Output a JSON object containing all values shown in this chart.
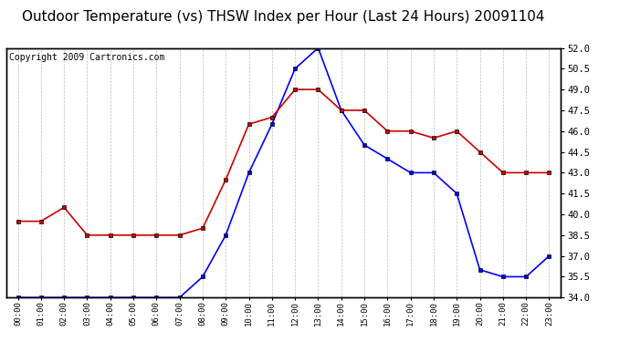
{
  "title": "Outdoor Temperature (vs) THSW Index per Hour (Last 24 Hours) 20091104",
  "copyright": "Copyright 2009 Cartronics.com",
  "hours": [
    "00:00",
    "01:00",
    "02:00",
    "03:00",
    "04:00",
    "05:00",
    "06:00",
    "07:00",
    "08:00",
    "09:00",
    "10:00",
    "11:00",
    "12:00",
    "13:00",
    "14:00",
    "15:00",
    "16:00",
    "17:00",
    "18:00",
    "19:00",
    "20:00",
    "21:00",
    "22:00",
    "23:00"
  ],
  "temp": [
    34.0,
    34.0,
    34.0,
    34.0,
    34.0,
    34.0,
    34.0,
    34.0,
    35.5,
    38.5,
    43.0,
    46.5,
    50.5,
    52.0,
    47.5,
    45.0,
    44.0,
    43.0,
    43.0,
    41.5,
    36.0,
    35.5,
    35.5,
    37.0
  ],
  "thsw": [
    39.5,
    39.5,
    40.5,
    38.5,
    38.5,
    38.5,
    38.5,
    38.5,
    39.0,
    42.5,
    46.5,
    47.0,
    49.0,
    49.0,
    47.5,
    47.5,
    46.0,
    46.0,
    45.5,
    46.0,
    44.5,
    43.0,
    43.0,
    43.0
  ],
  "ylim": [
    34.0,
    52.0
  ],
  "yticks": [
    34.0,
    35.5,
    37.0,
    38.5,
    40.0,
    41.5,
    43.0,
    44.5,
    46.0,
    47.5,
    49.0,
    50.5,
    52.0
  ],
  "temp_color": "#0000ff",
  "thsw_color": "#cc0000",
  "bg_color": "#ffffff",
  "grid_color": "#aaaaaa",
  "title_fontsize": 11,
  "copyright_fontsize": 7
}
